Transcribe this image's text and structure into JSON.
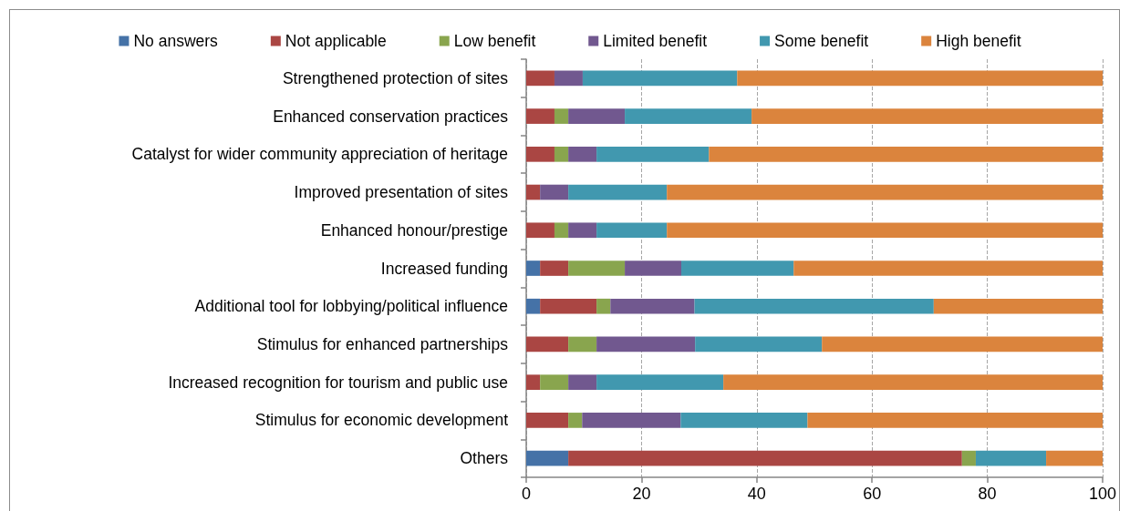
{
  "chart_data": {
    "type": "bar",
    "orientation": "horizontal",
    "stacked": true,
    "categories": [
      "Strengthened protection of sites",
      "Enhanced conservation practices",
      "Catalyst for wider community appreciation of heritage",
      "Improved presentation of sites",
      "Enhanced honour/prestige",
      "Increased funding",
      "Additional tool for lobbying/political influence",
      "Stimulus for enhanced partnerships",
      "Increased recognition for tourism and public use",
      "Stimulus for economic development",
      "Others"
    ],
    "series": [
      {
        "name": "No answers",
        "color": "#4572a7",
        "values": [
          null,
          null,
          null,
          null,
          null,
          2.4,
          2.4,
          null,
          null,
          null,
          7.3
        ]
      },
      {
        "name": "Not applicable",
        "color": "#aa4643",
        "values": [
          4.9,
          4.9,
          4.9,
          2.4,
          4.9,
          4.9,
          9.8,
          7.3,
          2.4,
          7.3,
          68.3
        ]
      },
      {
        "name": "Low benefit",
        "color": "#89a54e",
        "values": [
          null,
          2.4,
          2.4,
          null,
          2.4,
          9.8,
          2.4,
          4.9,
          4.9,
          2.4,
          2.4
        ]
      },
      {
        "name": "Limited benefit",
        "color": "#71588f",
        "values": [
          4.9,
          9.8,
          4.9,
          4.9,
          4.9,
          9.8,
          14.6,
          17.1,
          4.9,
          17.1,
          null
        ]
      },
      {
        "name": "Some benefit",
        "color": "#4198af",
        "values": [
          26.8,
          22.0,
          19.5,
          17.1,
          12.2,
          19.5,
          41.5,
          22.0,
          22.0,
          22.0,
          12.2
        ]
      },
      {
        "name": "High benefit",
        "color": "#db843d",
        "values": [
          63.4,
          60.9,
          68.3,
          75.6,
          75.6,
          53.6,
          29.3,
          48.7,
          65.8,
          51.2,
          9.8
        ]
      }
    ],
    "xlim": [
      0,
      100
    ],
    "xticks": [
      0,
      20,
      40,
      60,
      80,
      100
    ],
    "grid": "x",
    "legend": "top"
  }
}
